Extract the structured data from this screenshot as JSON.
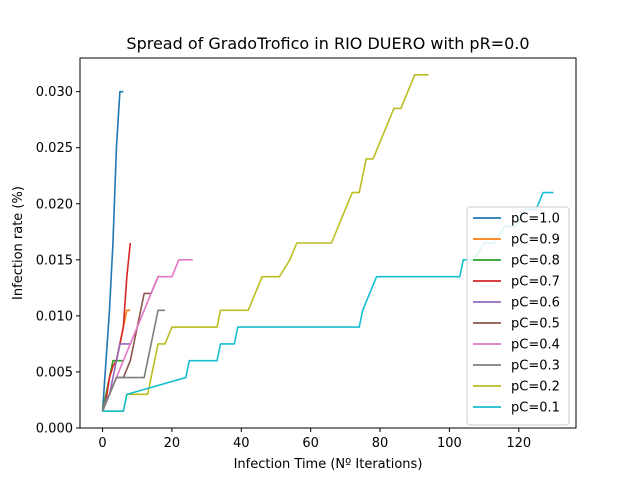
{
  "chart_data": {
    "type": "line",
    "title": "Spread of GradoTrofico in RIO DUERO with pR=0.0",
    "xlabel": "Infection Time (Nº Iterations)",
    "ylabel": "Infection rate (%)",
    "xlim": [
      -6.5,
      136.5
    ],
    "ylim": [
      0,
      0.033
    ],
    "xticks": [
      0,
      20,
      40,
      60,
      80,
      100,
      120
    ],
    "yticks": [
      0.0,
      0.005,
      0.01,
      0.015,
      0.02,
      0.025,
      0.03
    ],
    "xtick_labels": [
      "0",
      "20",
      "40",
      "60",
      "80",
      "100",
      "120"
    ],
    "ytick_labels": [
      "0.000",
      "0.005",
      "0.010",
      "0.015",
      "0.020",
      "0.025",
      "0.030"
    ],
    "grid": false,
    "legend_position": "right",
    "series": [
      {
        "name": "pC=1.0",
        "color": "#1f77b4",
        "x": [
          0,
          1,
          2,
          3,
          4,
          5,
          6
        ],
        "y": [
          0.0015,
          0.006,
          0.0105,
          0.0165,
          0.025,
          0.03,
          0.03
        ]
      },
      {
        "name": "pC=0.9",
        "color": "#ff7f0e",
        "x": [
          0,
          1,
          2,
          3,
          4,
          5,
          6,
          7,
          8
        ],
        "y": [
          0.0015,
          0.003,
          0.0045,
          0.006,
          0.006,
          0.0075,
          0.009,
          0.0105,
          0.0105
        ]
      },
      {
        "name": "pC=0.8",
        "color": "#2ca02c",
        "x": [
          0,
          1,
          2,
          3,
          4,
          5,
          6
        ],
        "y": [
          0.0015,
          0.003,
          0.0045,
          0.006,
          0.006,
          0.006,
          0.006
        ]
      },
      {
        "name": "pC=0.7",
        "color": "#d62728",
        "x": [
          0,
          1,
          2,
          3,
          4,
          5,
          6,
          7,
          8
        ],
        "y": [
          0.0015,
          0.0025,
          0.0045,
          0.0055,
          0.006,
          0.0075,
          0.009,
          0.0135,
          0.0165
        ]
      },
      {
        "name": "pC=0.6",
        "color": "#9467bd",
        "x": [
          0,
          1,
          2,
          3,
          4,
          5,
          6,
          7,
          8
        ],
        "y": [
          0.0015,
          0.0025,
          0.003,
          0.0045,
          0.006,
          0.0075,
          0.0075,
          0.0075,
          0.0075
        ]
      },
      {
        "name": "pC=0.5",
        "color": "#8c564b",
        "x": [
          0,
          2,
          4,
          6,
          8,
          10,
          12,
          14,
          16,
          17
        ],
        "y": [
          0.0015,
          0.003,
          0.0045,
          0.0045,
          0.006,
          0.009,
          0.012,
          0.012,
          0.0135,
          0.0135
        ]
      },
      {
        "name": "pC=0.4",
        "color": "#e377c2",
        "x": [
          0,
          2,
          4,
          6,
          8,
          10,
          12,
          14,
          16,
          18,
          20,
          22,
          24,
          26
        ],
        "y": [
          0.0015,
          0.003,
          0.0045,
          0.006,
          0.0075,
          0.009,
          0.0105,
          0.012,
          0.0135,
          0.0135,
          0.0135,
          0.015,
          0.015,
          0.015
        ]
      },
      {
        "name": "pC=0.3",
        "color": "#7f7f7f",
        "x": [
          0,
          2,
          4,
          6,
          8,
          10,
          12,
          14,
          16,
          18
        ],
        "y": [
          0.0015,
          0.003,
          0.0045,
          0.0045,
          0.0045,
          0.0045,
          0.0045,
          0.0075,
          0.0105,
          0.0105
        ]
      },
      {
        "name": "pC=0.2",
        "color": "#bcbd22",
        "x": [
          0,
          6,
          7,
          13,
          14,
          16,
          18,
          20,
          33,
          34,
          42,
          44,
          46,
          51,
          54,
          56,
          66,
          68,
          70,
          72,
          74,
          76,
          78,
          80,
          82,
          84,
          86,
          88,
          90,
          94
        ],
        "y": [
          0.0015,
          0.0015,
          0.003,
          0.003,
          0.0045,
          0.0075,
          0.0075,
          0.009,
          0.009,
          0.0105,
          0.0105,
          0.012,
          0.0135,
          0.0135,
          0.015,
          0.0165,
          0.0165,
          0.018,
          0.0195,
          0.021,
          0.021,
          0.024,
          0.024,
          0.0255,
          0.027,
          0.0285,
          0.0285,
          0.03,
          0.0315,
          0.0315
        ]
      },
      {
        "name": "pC=0.1",
        "color": "#17becf",
        "x": [
          0,
          6,
          7,
          24,
          25,
          33,
          34,
          38,
          39,
          74,
          75,
          79,
          80,
          103,
          104,
          107,
          110,
          113,
          116,
          119,
          122,
          125,
          127,
          130
        ],
        "y": [
          0.0015,
          0.0015,
          0.003,
          0.0045,
          0.006,
          0.006,
          0.0075,
          0.0075,
          0.009,
          0.009,
          0.0105,
          0.0135,
          0.0135,
          0.0135,
          0.015,
          0.015,
          0.0165,
          0.0165,
          0.018,
          0.018,
          0.0195,
          0.0195,
          0.021,
          0.021
        ]
      }
    ]
  }
}
